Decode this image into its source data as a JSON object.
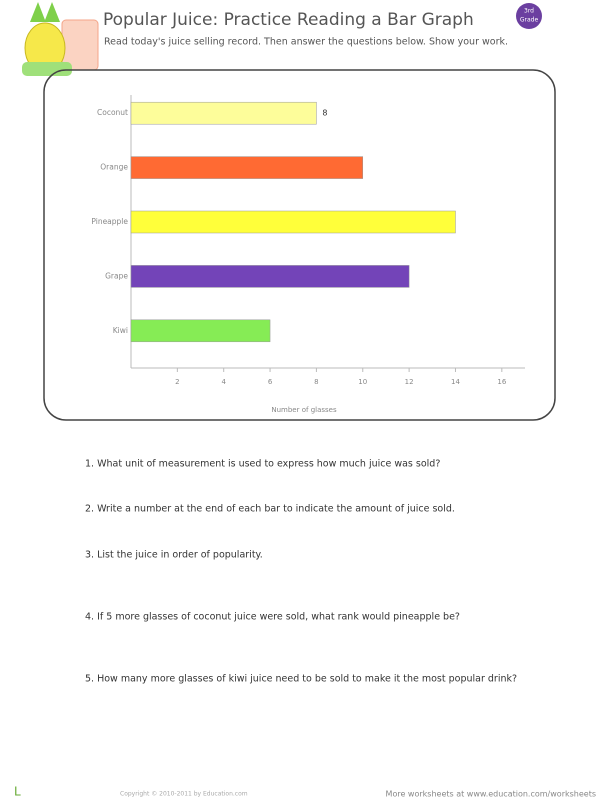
{
  "header": {
    "title": "Popular Juice: Practice Reading a Bar Graph",
    "badge": [
      "3rd",
      "Grade"
    ],
    "subtitle": "Read today's juice selling record. Then answer the questions below.  Show your work."
  },
  "chart_data": {
    "type": "hbar",
    "categories": [
      "Coconut",
      "Orange",
      "Pineapple",
      "Grape",
      "Kiwi"
    ],
    "values": [
      8,
      10,
      14,
      12,
      6
    ],
    "value_labels": [
      "8",
      null,
      null,
      null,
      null
    ],
    "colors": [
      "#fdfd9a",
      "#ff6a33",
      "#ffff3a",
      "#7344b8",
      "#86ec55"
    ],
    "xlim": [
      0,
      17
    ],
    "xticks": [
      2,
      4,
      6,
      8,
      10,
      12,
      14,
      16
    ],
    "x_label": "Number of glasses"
  },
  "questions": [
    "1.  What unit of measurement is used to express how much juice was sold?",
    "2.  Write a number at the end of each bar to indicate the amount of juice sold.",
    "3.  List the juice in order of popularity.",
    "4.  If 5 more glasses of coconut juice were sold, what rank would pineapple be?",
    "5.  How many more glasses of kiwi juice need to be sold to make it the most popular drink?"
  ],
  "footer": {
    "copyright": "Copyright © 2010-2011 by Education.com",
    "more": "More worksheets at www.education.com/worksheets"
  }
}
